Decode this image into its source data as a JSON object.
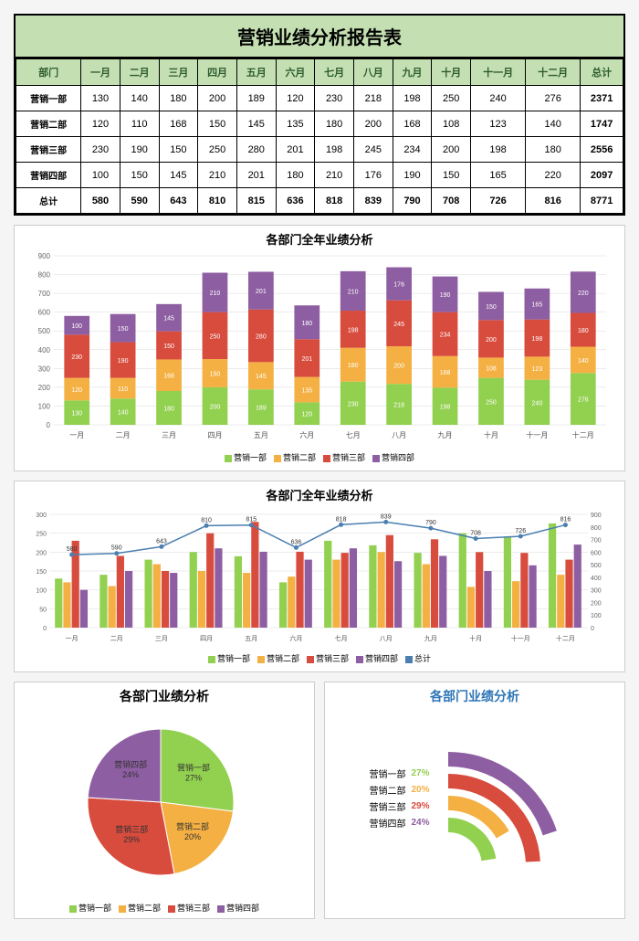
{
  "title": "营销业绩分析报告表",
  "months": [
    "一月",
    "二月",
    "三月",
    "四月",
    "五月",
    "六月",
    "七月",
    "八月",
    "九月",
    "十月",
    "十一月",
    "十二月"
  ],
  "dept_header": "部门",
  "total_header": "总计",
  "depts": [
    "营销一部",
    "营销二部",
    "营销三部",
    "营销四部"
  ],
  "data": [
    [
      130,
      140,
      180,
      200,
      189,
      120,
      230,
      218,
      198,
      250,
      240,
      276
    ],
    [
      120,
      110,
      168,
      150,
      145,
      135,
      180,
      200,
      168,
      108,
      123,
      140
    ],
    [
      230,
      190,
      150,
      250,
      280,
      201,
      198,
      245,
      234,
      200,
      198,
      180
    ],
    [
      100,
      150,
      145,
      210,
      201,
      180,
      210,
      176,
      190,
      150,
      165,
      220
    ]
  ],
  "row_totals": [
    2371,
    1747,
    2556,
    2097
  ],
  "col_totals": [
    580,
    590,
    643,
    810,
    815,
    636,
    818,
    839,
    790,
    708,
    726,
    816
  ],
  "grand_total": 8771,
  "colors": {
    "s1": "#92d050",
    "s2": "#f4b042",
    "s3": "#d84c3e",
    "s4": "#8e5ea2",
    "total_line": "#4a7fb0",
    "header_bg": "#c4e0b2",
    "grid": "#d9d9d9",
    "axis": "#888888"
  },
  "chart1": {
    "title": "各部门全年业绩分析",
    "ymax": 900,
    "ystep": 100,
    "legend": [
      "营销一部",
      "营销二部",
      "营销三部",
      "营销四部"
    ]
  },
  "chart2": {
    "title": "各部门全年业绩分析",
    "y1max": 300,
    "y1step": 50,
    "y2max": 900,
    "y2step": 100,
    "legend": [
      "营销一部",
      "营销二部",
      "营销三部",
      "营销四部",
      "总计"
    ]
  },
  "pie": {
    "title": "各部门业绩分析",
    "labels": [
      "营销一部",
      "营销二部",
      "营销三部",
      "营销四部"
    ],
    "pcts": [
      27,
      20,
      29,
      24
    ]
  },
  "ring": {
    "title": "各部门业绩分析",
    "labels": [
      "营销一部",
      "营销二部",
      "营销三部",
      "营销四部"
    ],
    "pcts": [
      27,
      20,
      29,
      24
    ]
  }
}
